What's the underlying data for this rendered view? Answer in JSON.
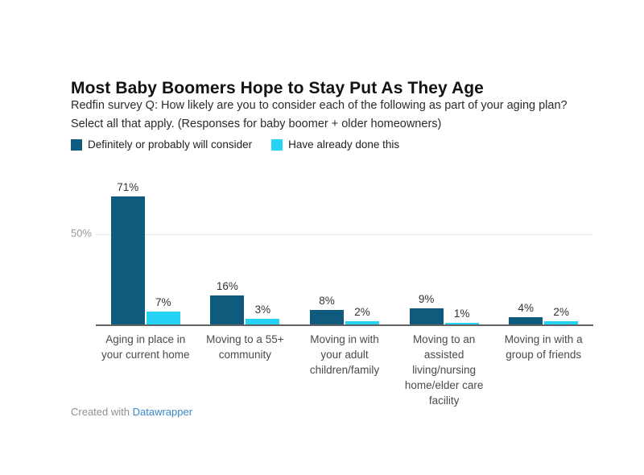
{
  "header": {
    "title": "Most Baby Boomers Hope to Stay Put As They Age",
    "subtitle_lines": [
      "Redfin survey Q: How likely are you to consider each of the following as part of your aging plan?",
      "Select all that apply. (Responses for baby boomer + older homeowners)"
    ]
  },
  "chart_data": {
    "type": "bar",
    "title": "Most Baby Boomers Hope to Stay Put As They Age",
    "subtitle": "Redfin survey Q: How likely are you to consider each of the following as part of your aging plan? Select all that apply. (Responses for baby boomer + older homeowners)",
    "categories": [
      "Aging in place in your current home",
      "Moving to a 55+ community",
      "Moving in with your adult children/family",
      "Moving to an assisted living/nursing home/elder care facility",
      "Moving in with a group of friends"
    ],
    "series": [
      {
        "name": "Definitely or probably will consider",
        "color": "#0f5b7e",
        "values": [
          71,
          16,
          8,
          9,
          4
        ]
      },
      {
        "name": "Have already done this",
        "color": "#26d2f5",
        "values": [
          7,
          3,
          2,
          1,
          2
        ]
      }
    ],
    "value_suffix": "%",
    "xlabel": "",
    "ylabel": "",
    "ylim": [
      0,
      82
    ],
    "yticks": [
      {
        "value": 50,
        "label": "50%"
      }
    ],
    "grid": "single-horizontal-line-at-50",
    "legend_position": "top-left",
    "value_labels": "above-bars"
  },
  "categories_wrapped": [
    [
      "Aging in place in",
      "your current home"
    ],
    [
      "Moving to a 55+",
      "community"
    ],
    [
      "Moving in with",
      "your adult",
      "children/family"
    ],
    [
      "Moving to an",
      "assisted",
      "living/nursing",
      "home/elder care",
      "facility"
    ],
    [
      "Moving in with a",
      "group of friends"
    ]
  ],
  "footer": {
    "prefix": "Created with",
    "link_label": "Datawrapper"
  },
  "colors": {
    "series_dark": "#0f5b7e",
    "series_cyan": "#26d2f5",
    "gridline": "#e7e7e7",
    "axis_line": "#636363",
    "tick_label": "#9a9a9a",
    "category_label": "#4a4a4a",
    "value_label": "#333333",
    "footer_text": "#8f8f8f",
    "link": "#3a87c9"
  }
}
